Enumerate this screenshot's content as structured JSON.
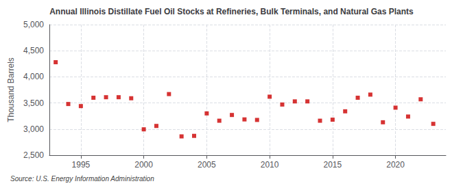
{
  "chart_data": {
    "type": "scatter",
    "title": "Annual Illinois Distillate Fuel Oil Stocks at Refineries, Bulk Terminals, and Natural Gas Plants",
    "ylabel": "Thousand Barrels",
    "source": "Source: U.S. Energy Information Administration",
    "x": [
      1993,
      1994,
      1995,
      1996,
      1997,
      1998,
      1999,
      2000,
      2001,
      2002,
      2003,
      2004,
      2005,
      2006,
      2007,
      2008,
      2009,
      2010,
      2011,
      2012,
      2013,
      2014,
      2015,
      2016,
      2017,
      2018,
      2019,
      2020,
      2021,
      2022,
      2023
    ],
    "values": [
      4280,
      3480,
      3440,
      3600,
      3610,
      3610,
      3590,
      2995,
      3060,
      3670,
      2860,
      2870,
      3300,
      3160,
      3270,
      3185,
      3175,
      3620,
      3470,
      3530,
      3530,
      3160,
      3180,
      3340,
      3600,
      3660,
      3130,
      3410,
      3240,
      3570,
      3100
    ],
    "color": "#cc0000",
    "marker": "square",
    "xlim": [
      1992.5,
      2024
    ],
    "xticks": [
      1995,
      2000,
      2005,
      2010,
      2015,
      2020
    ],
    "ylim": [
      2500,
      5000
    ],
    "yticks": [
      {
        "value": 2500,
        "label": "2,500"
      },
      {
        "value": 3000,
        "label": "3,000"
      },
      {
        "value": 3500,
        "label": "3,500"
      },
      {
        "value": 4000,
        "label": "4,000"
      },
      {
        "value": 4500,
        "label": "4,500"
      },
      {
        "value": 5000,
        "label": "5,000"
      }
    ],
    "grid": true
  }
}
